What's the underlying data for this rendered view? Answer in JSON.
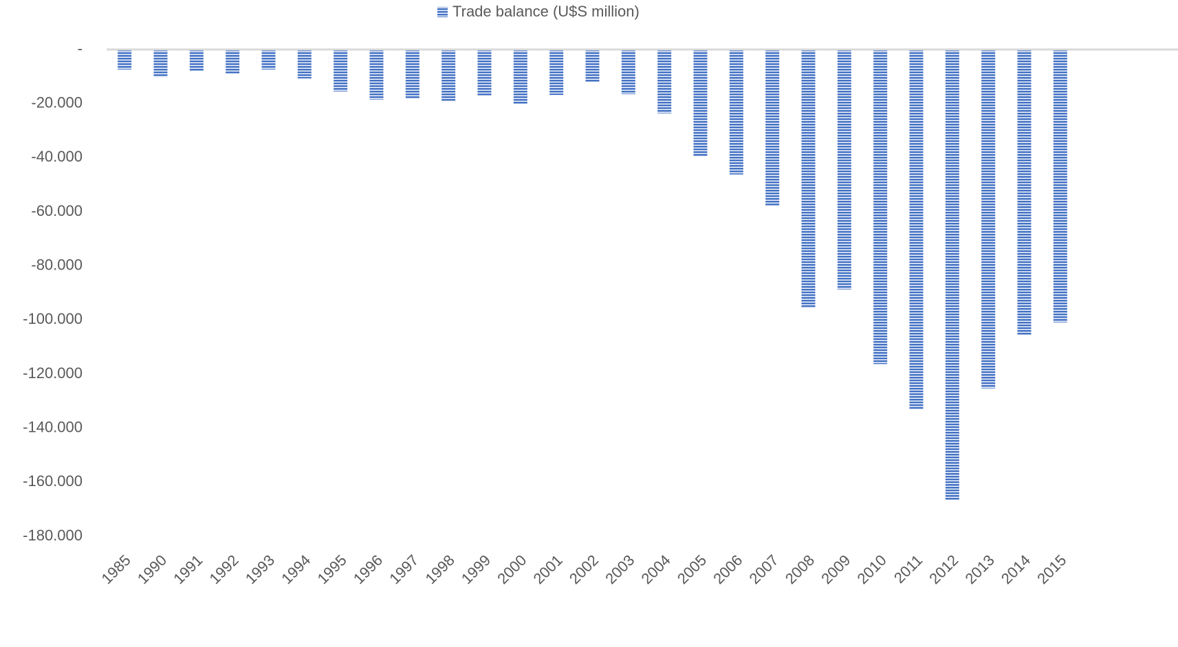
{
  "chart_data": {
    "type": "bar",
    "categories": [
      "1985",
      "1990",
      "1991",
      "1992",
      "1993",
      "1994",
      "1995",
      "1996",
      "1997",
      "1998",
      "1999",
      "2000",
      "2001",
      "2002",
      "2003",
      "2004",
      "2005",
      "2006",
      "2007",
      "2008",
      "2009",
      "2010",
      "2011",
      "2012",
      "2013",
      "2014",
      "2015"
    ],
    "series": [
      {
        "name": "Trade balance (U$S million)",
        "color": "#4472c4",
        "values": [
          -7400,
          -10200,
          -8100,
          -8900,
          -7400,
          -10700,
          -15500,
          -18500,
          -18300,
          -19000,
          -17000,
          -20300,
          -16800,
          -12200,
          -16500,
          -23600,
          -39600,
          -46200,
          -57700,
          -95300,
          -88700,
          -116300,
          -132900,
          -166700,
          -125300,
          -105400,
          -100900
        ]
      }
    ],
    "ylim": [
      -180000,
      0
    ],
    "yticks": [
      {
        "value": 0,
        "label": "-"
      },
      {
        "value": -20000,
        "label": "-20.000"
      },
      {
        "value": -40000,
        "label": "-40.000"
      },
      {
        "value": -60000,
        "label": "-60.000"
      },
      {
        "value": -80000,
        "label": "-80.000"
      },
      {
        "value": -100000,
        "label": "-100.000"
      },
      {
        "value": -120000,
        "label": "-120.000"
      },
      {
        "value": -140000,
        "label": "-140.000"
      },
      {
        "value": -160000,
        "label": "-160.000"
      },
      {
        "value": -180000,
        "label": "-180.000"
      }
    ],
    "grid": false,
    "legend": "top"
  }
}
